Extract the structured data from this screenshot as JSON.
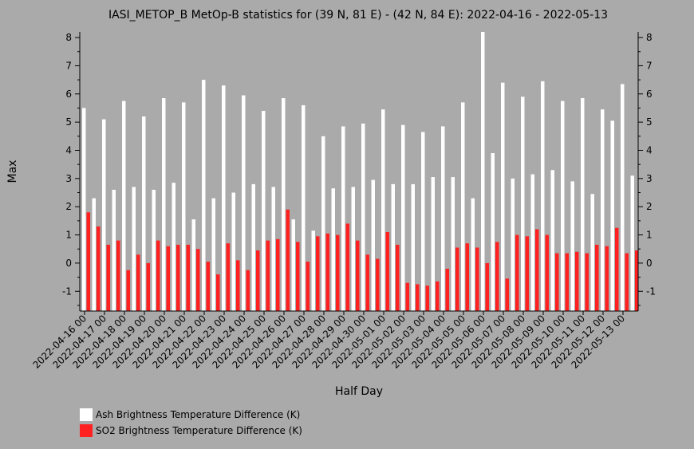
{
  "chart_data": {
    "type": "bar",
    "title": "IASI_METOP_B MetOp-B statistics for (39 N, 81 E) - (42 N, 84 E): 2022-04-16 - 2022-05-13",
    "xlabel": "Half Day",
    "ylabel": "Max",
    "ylim": [
      -1.7,
      8.2
    ],
    "yticks": [
      -1,
      0,
      1,
      2,
      3,
      4,
      5,
      6,
      7,
      8
    ],
    "tick_labels": [
      "2022-04-16 00",
      "2022-04-17 00",
      "2022-04-18 00",
      "2022-04-19 00",
      "2022-04-20 00",
      "2022-04-21 00",
      "2022-04-22 00",
      "2022-04-23 00",
      "2022-04-24 00",
      "2022-04-25 00",
      "2022-04-26 00",
      "2022-04-27 00",
      "2022-04-28 00",
      "2022-04-29 00",
      "2022-04-30 00",
      "2022-05-01 00",
      "2022-05-02 00",
      "2022-05-03 00",
      "2022-05-04 00",
      "2022-05-05 00",
      "2022-05-06 00",
      "2022-05-07 00",
      "2022-05-08 00",
      "2022-05-09 00",
      "2022-05-10 00",
      "2022-05-11 00",
      "2022-05-12 00",
      "2022-05-13 00"
    ],
    "categories": [
      "2022-04-16 00",
      "2022-04-16 12",
      "2022-04-17 00",
      "2022-04-17 12",
      "2022-04-18 00",
      "2022-04-18 12",
      "2022-04-19 00",
      "2022-04-19 12",
      "2022-04-20 00",
      "2022-04-20 12",
      "2022-04-21 00",
      "2022-04-21 12",
      "2022-04-22 00",
      "2022-04-22 12",
      "2022-04-23 00",
      "2022-04-23 12",
      "2022-04-24 00",
      "2022-04-24 12",
      "2022-04-25 00",
      "2022-04-25 12",
      "2022-04-26 00",
      "2022-04-26 12",
      "2022-04-27 00",
      "2022-04-27 12",
      "2022-04-28 00",
      "2022-04-28 12",
      "2022-04-29 00",
      "2022-04-29 12",
      "2022-04-30 00",
      "2022-04-30 12",
      "2022-05-01 00",
      "2022-05-01 12",
      "2022-05-02 00",
      "2022-05-02 12",
      "2022-05-03 00",
      "2022-05-03 12",
      "2022-05-04 00",
      "2022-05-04 12",
      "2022-05-05 00",
      "2022-05-05 12",
      "2022-05-06 00",
      "2022-05-06 12",
      "2022-05-07 00",
      "2022-05-07 12",
      "2022-05-08 00",
      "2022-05-08 12",
      "2022-05-09 00",
      "2022-05-09 12",
      "2022-05-10 00",
      "2022-05-10 12",
      "2022-05-11 00",
      "2022-05-11 12",
      "2022-05-12 00",
      "2022-05-12 12",
      "2022-05-13 00",
      "2022-05-13 12"
    ],
    "series": [
      {
        "name": "Ash Brightness Temperature Difference (K)",
        "color": "#ffffff",
        "values": [
          5.5,
          2.3,
          5.1,
          2.6,
          5.75,
          2.7,
          5.2,
          2.6,
          5.85,
          2.85,
          5.7,
          1.55,
          6.5,
          2.3,
          6.3,
          2.5,
          5.95,
          2.8,
          5.4,
          2.7,
          5.85,
          1.55,
          5.6,
          1.15,
          4.5,
          2.65,
          4.85,
          2.7,
          4.95,
          2.95,
          5.45,
          2.8,
          4.9,
          2.8,
          4.65,
          3.05,
          4.85,
          3.05,
          5.7,
          2.3,
          8.2,
          3.9,
          6.4,
          3.0,
          5.9,
          3.15,
          6.45,
          3.3,
          5.75,
          2.9,
          5.85,
          2.45,
          5.45,
          5.05,
          6.35,
          3.1
        ]
      },
      {
        "name": "SO2 Brightness Temperature Difference (K)",
        "color": "#ff2020",
        "values": [
          1.8,
          1.3,
          0.65,
          0.8,
          -0.25,
          0.3,
          0.0,
          0.8,
          0.6,
          0.65,
          0.65,
          0.5,
          0.05,
          -0.4,
          0.7,
          0.1,
          -0.25,
          0.45,
          0.8,
          0.85,
          1.9,
          0.75,
          0.05,
          0.95,
          1.05,
          1.0,
          1.4,
          0.8,
          0.3,
          0.15,
          1.1,
          0.65,
          -0.7,
          -0.75,
          -0.8,
          -0.65,
          -0.2,
          0.55,
          0.7,
          0.55,
          0.0,
          0.75,
          -0.55,
          1.0,
          0.95,
          1.2,
          1.0,
          0.35,
          0.35,
          0.4,
          0.35,
          0.65,
          0.6,
          1.25,
          0.35,
          0.45
        ]
      }
    ],
    "legend_position": "bottom-left"
  }
}
